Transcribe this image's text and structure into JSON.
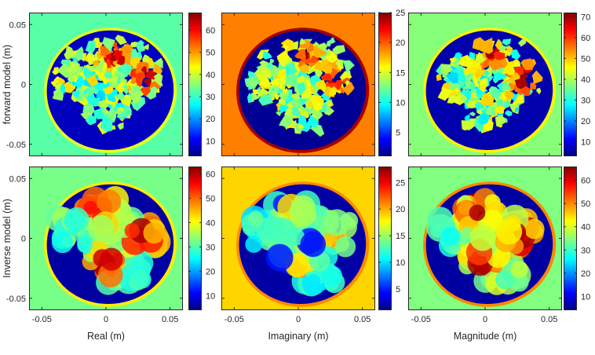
{
  "chart_data": [
    {
      "type": "heatmap",
      "row": "forward model",
      "column": "real",
      "ylabel": "forward model (m)",
      "xlabel": "",
      "xticks": [
        "-0.05",
        "0",
        "0.05"
      ],
      "yticks": [
        "0.05",
        "0",
        "-0.05"
      ],
      "xlim": [
        -0.06,
        0.06
      ],
      "ylim": [
        -0.06,
        0.06
      ],
      "background_value": 33,
      "outer_ring_value": 42,
      "inner_value": 7,
      "peak_value": 66,
      "colorbar": {
        "min": 3,
        "max": 68,
        "ticks": [
          10,
          20,
          30,
          40,
          50,
          60
        ],
        "labels": [
          "10",
          "20",
          "30",
          "40",
          "50",
          "60"
        ]
      }
    },
    {
      "type": "heatmap",
      "row": "forward model",
      "column": "imaginary",
      "ylabel": "",
      "xlabel": "",
      "xticks": [
        "-0.05",
        "0",
        "0.05"
      ],
      "yticks": [
        "0.05",
        "0",
        "-0.05"
      ],
      "xlim": [
        -0.06,
        0.06
      ],
      "ylim": [
        -0.06,
        0.06
      ],
      "background_value": 19,
      "outer_ring_value": 24,
      "inner_value": 1.5,
      "peak_value": 23,
      "colorbar": {
        "min": 1,
        "max": 25,
        "ticks": [
          5,
          10,
          15,
          20,
          25
        ],
        "labels": [
          "5",
          "10",
          "15",
          "20",
          "25"
        ]
      }
    },
    {
      "type": "heatmap",
      "row": "forward model",
      "column": "magnitude",
      "ylabel": "",
      "xlabel": "",
      "xticks": [
        "-0.05",
        "0",
        "0.05"
      ],
      "yticks": [
        "0.05",
        "0",
        "-0.05"
      ],
      "xlim": [
        -0.06,
        0.06
      ],
      "ylim": [
        -0.06,
        0.06
      ],
      "background_value": 38,
      "outer_ring_value": 47,
      "inner_value": 6,
      "peak_value": 70,
      "colorbar": {
        "min": 3,
        "max": 72,
        "ticks": [
          10,
          20,
          30,
          40,
          50,
          60,
          70
        ],
        "labels": [
          "10",
          "20",
          "30",
          "40",
          "50",
          "60",
          "70"
        ]
      }
    },
    {
      "type": "heatmap",
      "row": "inverse model",
      "column": "real",
      "ylabel": "Inverse model (m)",
      "xlabel": "Real (m)",
      "xticks": [
        "-0.05",
        "0",
        "0.05"
      ],
      "yticks": [
        "0.05",
        "0",
        "-0.05"
      ],
      "xlim": [
        -0.06,
        0.06
      ],
      "ylim": [
        -0.06,
        0.06
      ],
      "background_value": 33,
      "outer_ring_value": 42,
      "inner_value": 6,
      "peak_value": 60,
      "colorbar": {
        "min": 4,
        "max": 63,
        "ticks": [
          10,
          20,
          30,
          40,
          50,
          60
        ],
        "labels": [
          "10",
          "20",
          "30",
          "40",
          "50",
          "60"
        ]
      }
    },
    {
      "type": "heatmap",
      "row": "inverse model",
      "column": "imaginary",
      "ylabel": "",
      "xlabel": "Imaginary (m)",
      "xticks": [
        "-0.05",
        "0",
        "0.05"
      ],
      "yticks": [
        "0.05",
        "0",
        "-0.05"
      ],
      "xlim": [
        -0.06,
        0.06
      ],
      "ylim": [
        -0.06,
        0.06
      ],
      "background_value": 19,
      "outer_ring_value": 21,
      "inner_value": 2,
      "peak_value": 24,
      "colorbar": {
        "min": 1,
        "max": 28,
        "ticks": [
          5,
          10,
          15,
          20,
          25
        ],
        "labels": [
          "5",
          "10",
          "15",
          "20",
          "25"
        ]
      }
    },
    {
      "type": "heatmap",
      "row": "inverse model",
      "column": "magnitude",
      "ylabel": "",
      "xlabel": "Magnitude (m)",
      "xticks": [
        "-0.05",
        "0",
        "0.05"
      ],
      "yticks": [
        "0.05",
        "0",
        "-0.05"
      ],
      "xlim": [
        -0.06,
        0.06
      ],
      "ylim": [
        -0.06,
        0.06
      ],
      "background_value": 35,
      "outer_ring_value": 50,
      "inner_value": 6,
      "peak_value": 62,
      "colorbar": {
        "min": 4,
        "max": 66,
        "ticks": [
          10,
          20,
          30,
          40,
          50,
          60
        ],
        "labels": [
          "10",
          "20",
          "30",
          "40",
          "50",
          "60"
        ]
      }
    }
  ],
  "colormap": "jet"
}
